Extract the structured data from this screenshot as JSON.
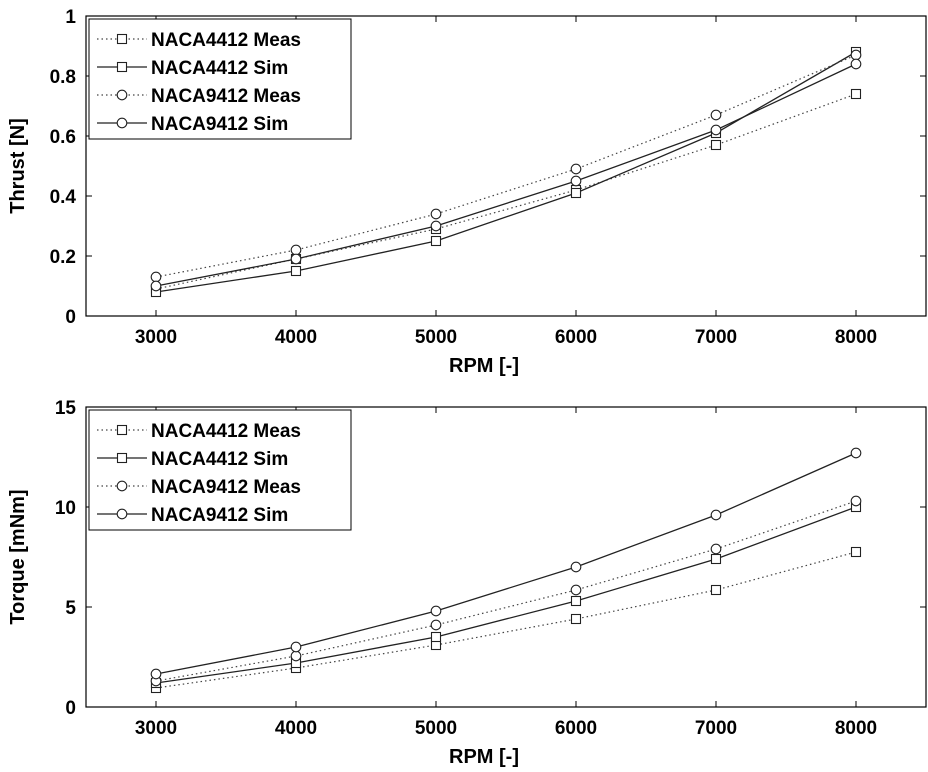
{
  "chart_data": [
    {
      "type": "line",
      "xlabel": "RPM [-]",
      "ylabel": "Thrust [N]",
      "xlim": [
        2500,
        8500
      ],
      "ylim": [
        0,
        1
      ],
      "xticks": [
        3000,
        4000,
        5000,
        6000,
        7000,
        8000
      ],
      "xtick_labels": [
        "3000",
        "4000",
        "5000",
        "6000",
        "7000",
        "8000"
      ],
      "yticks": [
        0,
        0.2,
        0.4,
        0.6,
        0.8,
        1
      ],
      "ytick_labels": [
        "0",
        "0.2",
        "0.4",
        "0.6",
        "0.8",
        "1"
      ],
      "grid": false,
      "legend_position": "top-left",
      "x": [
        3000,
        4000,
        5000,
        6000,
        7000,
        8000
      ],
      "series": [
        {
          "name": "NACA4412 Meas",
          "marker": "square",
          "line": "dotted",
          "values": [
            0.09,
            0.19,
            0.29,
            0.42,
            0.57,
            0.74
          ]
        },
        {
          "name": "NACA4412 Sim",
          "marker": "square",
          "line": "solid",
          "values": [
            0.08,
            0.15,
            0.25,
            0.41,
            0.61,
            0.88
          ]
        },
        {
          "name": "NACA9412 Meas",
          "marker": "circle",
          "line": "dotted",
          "values": [
            0.13,
            0.22,
            0.34,
            0.49,
            0.67,
            0.87
          ]
        },
        {
          "name": "NACA9412 Sim",
          "marker": "circle",
          "line": "solid",
          "values": [
            0.1,
            0.19,
            0.3,
            0.45,
            0.62,
            0.84
          ]
        }
      ]
    },
    {
      "type": "line",
      "xlabel": "RPM [-]",
      "ylabel": "Torque [mNm]",
      "xlim": [
        2500,
        8500
      ],
      "ylim": [
        0,
        15
      ],
      "xticks": [
        3000,
        4000,
        5000,
        6000,
        7000,
        8000
      ],
      "xtick_labels": [
        "3000",
        "4000",
        "5000",
        "6000",
        "7000",
        "8000"
      ],
      "yticks": [
        0,
        5,
        10,
        15
      ],
      "ytick_labels": [
        "0",
        "5",
        "10",
        "15"
      ],
      "grid": false,
      "legend_position": "top-left",
      "x": [
        3000,
        4000,
        5000,
        6000,
        7000,
        8000
      ],
      "series": [
        {
          "name": "NACA4412 Meas",
          "marker": "square",
          "line": "dotted",
          "values": [
            0.95,
            1.95,
            3.1,
            4.4,
            5.85,
            7.75
          ]
        },
        {
          "name": "NACA4412 Sim",
          "marker": "square",
          "line": "solid",
          "values": [
            1.2,
            2.2,
            3.5,
            5.3,
            7.4,
            10
          ]
        },
        {
          "name": "NACA9412 Meas",
          "marker": "circle",
          "line": "dotted",
          "values": [
            1.3,
            2.55,
            4.1,
            5.85,
            7.9,
            10.3
          ]
        },
        {
          "name": "NACA9412 Sim",
          "marker": "circle",
          "line": "solid",
          "values": [
            1.65,
            3,
            4.8,
            7,
            9.6,
            12.7
          ]
        }
      ]
    }
  ]
}
